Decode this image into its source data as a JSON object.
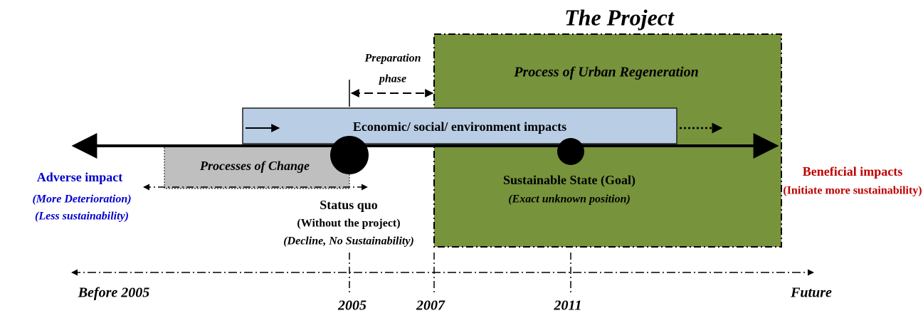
{
  "title": "The Project",
  "regeneration": "Process of Urban Regeneration",
  "preparation": {
    "line1": "Preparation",
    "line2": "phase"
  },
  "impacts_bar": "Economic/ social/ environment impacts",
  "change": "Processes of Change",
  "adverse": {
    "title": "Adverse impact",
    "line1": "(More Deterioration)",
    "line2": "(Less sustainability)"
  },
  "status_quo": {
    "title": "Status quo",
    "line1": "(Without the project)",
    "line2": "(Decline, No Sustainability)"
  },
  "goal": {
    "title": "Sustainable State (Goal)",
    "line1": "(Exact unknown position)"
  },
  "beneficial": {
    "title": "Beneficial impacts",
    "line1": "(Initiate more sustainability)"
  },
  "timeline": {
    "start": "Before 2005",
    "end": "Future",
    "ticks": [
      "2005",
      "2007",
      "2011"
    ]
  }
}
